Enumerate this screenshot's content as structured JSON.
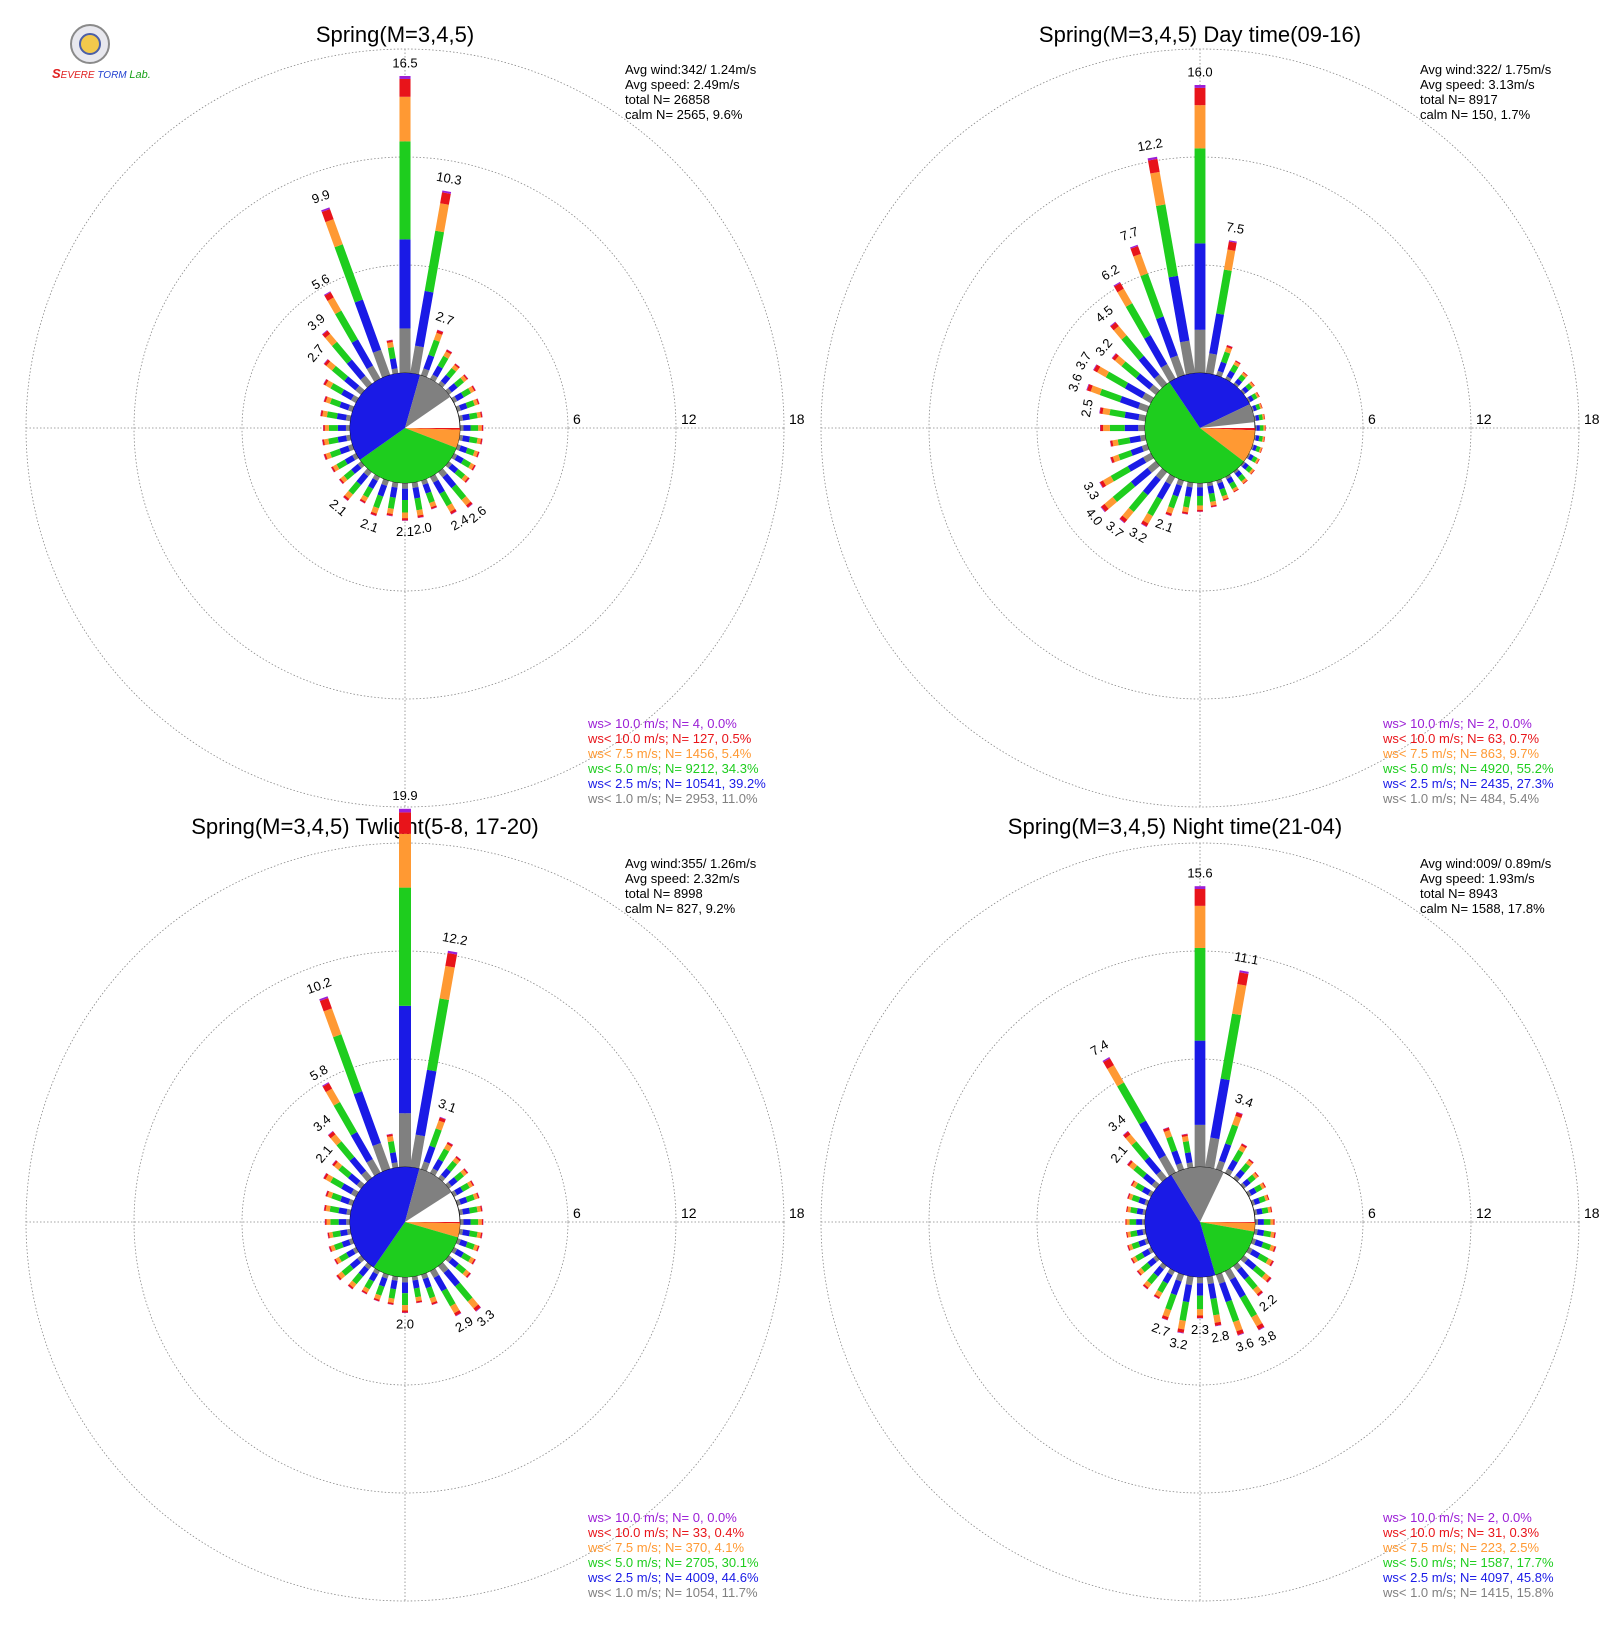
{
  "logo": {
    "s": "S",
    "line1": "EVERE",
    "line2": "TORM",
    "lab": "Lab."
  },
  "colors": {
    "gt10": "#9b1fd6",
    "lt10": "#e8141a",
    "lt75": "#ff9933",
    "lt5": "#1ecd1e",
    "lt25": "#1a1ae6",
    "lt1": "#808080",
    "grid": "#888888",
    "text": "#000000"
  },
  "rings": [
    "6",
    "12",
    "18"
  ],
  "legend_rows": [
    {
      "key": "gt10",
      "label": "ws> 10.0 m/s; N="
    },
    {
      "key": "lt10",
      "label": "ws< 10.0 m/s; N="
    },
    {
      "key": "lt75",
      "label": "ws<  7.5 m/s; N="
    },
    {
      "key": "lt5",
      "label": "ws<  5.0 m/s; N="
    },
    {
      "key": "lt25",
      "label": "ws<  2.5 m/s; N="
    },
    {
      "key": "lt1",
      "label": "ws<  1.0 m/s; N="
    }
  ],
  "chart_data": [
    {
      "type": "wind-rose",
      "title": "Spring(M=3,4,5)",
      "stats": {
        "avg_wind": "Avg wind:342/ 1.24m/s",
        "avg_speed": "Avg speed: 2.49m/s",
        "total": "total N=      26858",
        "calm": "calm N=   2565,   9.6%"
      },
      "legend_counts": [
        "4,  0.0%",
        "127,  0.5%",
        "1456,  5.4%",
        "9212, 34.3%",
        "10541, 39.2%",
        "2953, 11.0%"
      ],
      "pie": [
        0.0,
        0.5,
        5.4,
        34.3,
        39.2,
        11.0
      ],
      "directions": [
        0,
        10,
        20,
        30,
        40,
        50,
        60,
        70,
        80,
        90,
        100,
        110,
        120,
        130,
        140,
        150,
        160,
        170,
        180,
        190,
        200,
        210,
        220,
        230,
        240,
        250,
        260,
        270,
        280,
        290,
        300,
        310,
        320,
        330,
        340,
        350
      ],
      "values": [
        16.5,
        10.3,
        2.7,
        1.9,
        1.5,
        1.4,
        1.4,
        1.3,
        1.3,
        1.3,
        1.3,
        1.3,
        1.4,
        1.5,
        2.6,
        2.4,
        1.7,
        2.0,
        2.1,
        1.9,
        2.1,
        1.7,
        2.1,
        1.6,
        1.6,
        1.7,
        1.6,
        1.5,
        1.7,
        1.7,
        2.1,
        2.7,
        3.9,
        5.6,
        9.9,
        1.9
      ],
      "labels": {
        "0": "16.5",
        "10": "10.3",
        "20": "2.7",
        "140": "2.6",
        "150": "2.4",
        "170": "2.0",
        "180": "2.1",
        "200": "2.1",
        "220": "2.1",
        "310": "2.7",
        "320": "3.9",
        "330": "5.6",
        "340": "9.9"
      }
    },
    {
      "type": "wind-rose",
      "title": "Spring(M=3,4,5) Day time(09-16)",
      "stats": {
        "avg_wind": "Avg wind:322/ 1.75m/s",
        "avg_speed": "Avg speed: 3.13m/s",
        "total": "total N=      8917",
        "calm": "calm N=    150,   1.7%"
      },
      "legend_counts": [
        "2,  0.0%",
        "63,  0.7%",
        "863,  9.7%",
        "4920, 55.2%",
        "2435, 27.3%",
        "484,  5.4%"
      ],
      "pie": [
        0.0,
        0.7,
        9.7,
        55.2,
        27.3,
        5.4
      ],
      "directions": [
        0,
        10,
        20,
        30,
        40,
        50,
        60,
        70,
        80,
        90,
        100,
        110,
        120,
        130,
        140,
        150,
        160,
        170,
        180,
        190,
        200,
        210,
        220,
        230,
        240,
        250,
        260,
        270,
        280,
        290,
        300,
        310,
        320,
        330,
        340,
        350
      ],
      "values": [
        16.0,
        7.5,
        1.8,
        1.2,
        0.9,
        0.8,
        0.7,
        0.6,
        0.6,
        0.6,
        0.6,
        0.6,
        0.7,
        0.8,
        0.9,
        1.0,
        1.2,
        1.4,
        1.6,
        1.8,
        2.1,
        3.2,
        3.7,
        4.0,
        3.3,
        2.2,
        2.0,
        2.5,
        2.6,
        3.6,
        3.7,
        3.2,
        4.5,
        6.2,
        7.7,
        12.2
      ],
      "labels": {
        "0": "16.0",
        "10": "7.5",
        "200": "2.1",
        "210": "3.2",
        "220": "3.7",
        "230": "4.0",
        "240": "3.3",
        "280": "2.5",
        "290": "3.6",
        "300": "3.7",
        "310": "3.2",
        "320": "4.5",
        "330": "6.2",
        "340": "7.7",
        "350": "12.2"
      }
    },
    {
      "type": "wind-rose",
      "title": "Spring(M=3,4,5) Twlight(5-8, 17-20)",
      "stats": {
        "avg_wind": "Avg wind:355/ 1.26m/s",
        "avg_speed": "Avg speed: 2.32m/s",
        "total": "total N=      8998",
        "calm": "calm N=    827,   9.2%"
      },
      "legend_counts": [
        "0,  0.0%",
        "33,  0.4%",
        "370,  4.1%",
        "2705, 30.1%",
        "4009, 44.6%",
        "1054, 11.7%"
      ],
      "pie": [
        0.0,
        0.4,
        4.1,
        30.1,
        44.6,
        11.7
      ],
      "directions": [
        0,
        10,
        20,
        30,
        40,
        50,
        60,
        70,
        80,
        90,
        100,
        110,
        120,
        130,
        140,
        150,
        160,
        170,
        180,
        190,
        200,
        210,
        220,
        230,
        240,
        250,
        260,
        270,
        280,
        290,
        300,
        310,
        320,
        330,
        340,
        350
      ],
      "values": [
        19.9,
        12.2,
        3.1,
        2.0,
        1.6,
        1.4,
        1.3,
        1.3,
        1.3,
        1.3,
        1.3,
        1.3,
        1.4,
        1.6,
        3.3,
        2.9,
        1.8,
        1.5,
        2.0,
        1.6,
        1.6,
        1.5,
        1.7,
        1.8,
        1.4,
        1.4,
        1.3,
        1.4,
        1.5,
        1.6,
        2.1,
        2.1,
        3.4,
        5.8,
        10.2,
        1.9
      ],
      "labels": {
        "0": "19.9",
        "10": "12.2",
        "20": "3.1",
        "140": "3.3",
        "150": "2.9",
        "180": "2.0",
        "310": "2.1",
        "320": "3.4",
        "330": "5.8",
        "340": "10.2"
      }
    },
    {
      "type": "wind-rose",
      "title": "Spring(M=3,4,5) Night time(21-04)",
      "stats": {
        "avg_wind": "Avg wind:009/ 0.89m/s",
        "avg_speed": "Avg speed: 1.93m/s",
        "total": "total N=      8943",
        "calm": "calm N=   1588,  17.8%"
      },
      "legend_counts": [
        "2,  0.0%",
        "31,  0.3%",
        "223,  2.5%",
        "1587, 17.7%",
        "4097, 45.8%",
        "1415, 15.8%"
      ],
      "pie": [
        0.0,
        0.3,
        2.5,
        17.7,
        45.8,
        15.8
      ],
      "directions": [
        0,
        10,
        20,
        30,
        40,
        50,
        60,
        70,
        80,
        90,
        100,
        110,
        120,
        130,
        140,
        150,
        160,
        170,
        180,
        190,
        200,
        210,
        220,
        230,
        240,
        250,
        260,
        270,
        280,
        290,
        300,
        310,
        320,
        330,
        340,
        350
      ],
      "values": [
        15.6,
        11.1,
        3.4,
        1.9,
        1.4,
        1.1,
        1.1,
        1.0,
        1.0,
        1.1,
        1.2,
        1.4,
        1.6,
        2.0,
        2.2,
        3.8,
        3.6,
        2.8,
        2.3,
        3.2,
        2.7,
        1.8,
        1.7,
        1.4,
        1.3,
        1.2,
        1.1,
        1.1,
        1.1,
        1.2,
        1.3,
        2.1,
        3.4,
        7.4,
        2.5,
        1.9
      ],
      "labels": {
        "0": "15.6",
        "10": "11.1",
        "20": "3.4",
        "140": "2.2",
        "150": "3.8",
        "160": "3.6",
        "170": "2.8",
        "180": "2.3",
        "190": "3.2",
        "200": "2.7",
        "310": "2.1",
        "320": "3.4",
        "330": "7.4"
      }
    }
  ]
}
